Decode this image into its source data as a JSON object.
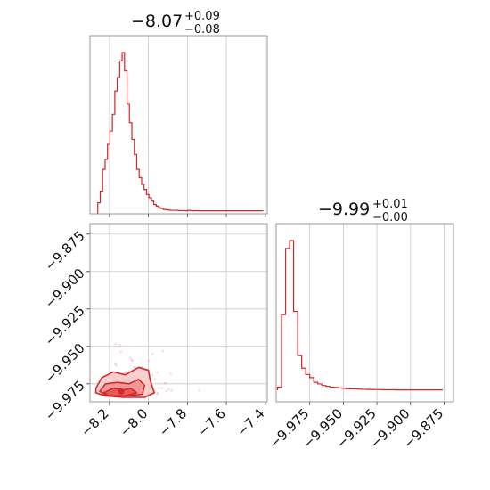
{
  "chart_data": [
    {
      "type": "histogram",
      "panel": "marginal-param-1",
      "title": {
        "value": "−8.07",
        "upper": "+0.09",
        "lower": "−0.08"
      },
      "bin_start": -8.26,
      "bin_width": 0.0125,
      "counts": [
        5,
        12,
        25,
        31,
        40,
        48,
        58,
        72,
        80,
        90,
        95,
        84,
        64,
        53,
        43,
        34,
        25,
        20,
        16,
        13,
        10,
        8,
        6,
        4,
        3,
        2,
        1.5,
        1,
        0.8,
        0.6,
        0.5,
        0.5,
        0.5,
        0.3,
        0.3,
        0.3,
        0.2,
        0.5,
        0.3,
        0.2,
        0.3,
        0.2,
        0.2,
        0.2,
        0.2,
        0.2,
        0.2,
        0.2,
        0.2,
        0.2,
        0.2,
        0.2,
        0.2,
        0.2,
        0.2,
        0.2,
        0.2,
        0.2,
        0.2,
        0.2,
        0.2,
        0.2,
        0.2,
        0.2,
        0.2,
        0.2,
        0.2,
        0.2
      ],
      "xlim": [
        -8.3,
        -7.39
      ],
      "grid": true,
      "color": "#d62728"
    },
    {
      "type": "histogram",
      "panel": "marginal-param-2",
      "title": {
        "value": "−9.99",
        "upper": "+0.01",
        "lower": "−0.00"
      },
      "bin_start": -9.999,
      "bin_width": 0.003,
      "counts": [
        2,
        48,
        90,
        95,
        50,
        22,
        14,
        10,
        8,
        5,
        4,
        3,
        2.5,
        2,
        1.8,
        1.5,
        1.2,
        1,
        0.8,
        0.8,
        0.7,
        0.6,
        0.5,
        0.5,
        0.4,
        0.4,
        0.3,
        0.3,
        0.3,
        0.2,
        0.2,
        0.2,
        0.2,
        0.2,
        0.2,
        0.2,
        0.2,
        0.2,
        0.2,
        0.2,
        0.2
      ],
      "xlim": [
        -10.0,
        -9.868
      ],
      "xticks": [
        "−9.975",
        "−9.950",
        "−9.925",
        "−9.900",
        "−9.875"
      ],
      "xtick_values": [
        -9.975,
        -9.95,
        -9.925,
        -9.9,
        -9.875
      ],
      "grid": true,
      "color": "#d62728"
    },
    {
      "type": "heatmap",
      "panel": "joint-contour",
      "xlim": [
        -8.3,
        -7.39
      ],
      "ylim": [
        -9.987,
        -9.868
      ],
      "xticks": [
        "−8.2",
        "−8.0",
        "−7.8",
        "−7.6",
        "−7.4"
      ],
      "xtick_values": [
        -8.2,
        -8.0,
        -7.8,
        -7.6,
        -7.4
      ],
      "yticks": [
        "−9.875",
        "−9.900",
        "−9.925",
        "−9.950",
        "−9.975"
      ],
      "ytick_values": [
        -9.875,
        -9.9,
        -9.925,
        -9.95,
        -9.975
      ],
      "contour_levels": [
        {
          "level": 0.39,
          "points": [
            [
              -8.27,
              -9.978
            ],
            [
              -8.24,
              -9.971
            ],
            [
              -8.18,
              -9.967
            ],
            [
              -8.12,
              -9.969
            ],
            [
              -8.05,
              -9.964
            ],
            [
              -8.0,
              -9.966
            ],
            [
              -7.99,
              -9.973
            ],
            [
              -7.97,
              -9.981
            ],
            [
              -8.02,
              -9.984
            ],
            [
              -8.13,
              -9.984
            ],
            [
              -8.22,
              -9.983
            ],
            [
              -8.27,
              -9.981
            ]
          ]
        },
        {
          "level": 0.86,
          "points": [
            [
              -8.25,
              -9.98
            ],
            [
              -8.22,
              -9.975
            ],
            [
              -8.16,
              -9.974
            ],
            [
              -8.1,
              -9.975
            ],
            [
              -8.05,
              -9.972
            ],
            [
              -8.02,
              -9.976
            ],
            [
              -8.03,
              -9.982
            ],
            [
              -8.12,
              -9.983
            ],
            [
              -8.21,
              -9.983
            ]
          ]
        },
        {
          "level": 0.99,
          "points": [
            [
              -8.23,
              -9.981
            ],
            [
              -8.18,
              -9.978
            ],
            [
              -8.13,
              -9.979
            ],
            [
              -8.09,
              -9.978
            ],
            [
              -8.06,
              -9.981
            ],
            [
              -8.12,
              -9.983
            ],
            [
              -8.2,
              -9.983
            ]
          ]
        }
      ],
      "density_peak": [
        -8.14,
        -9.98
      ],
      "grid": true,
      "color": "#d62728"
    }
  ]
}
